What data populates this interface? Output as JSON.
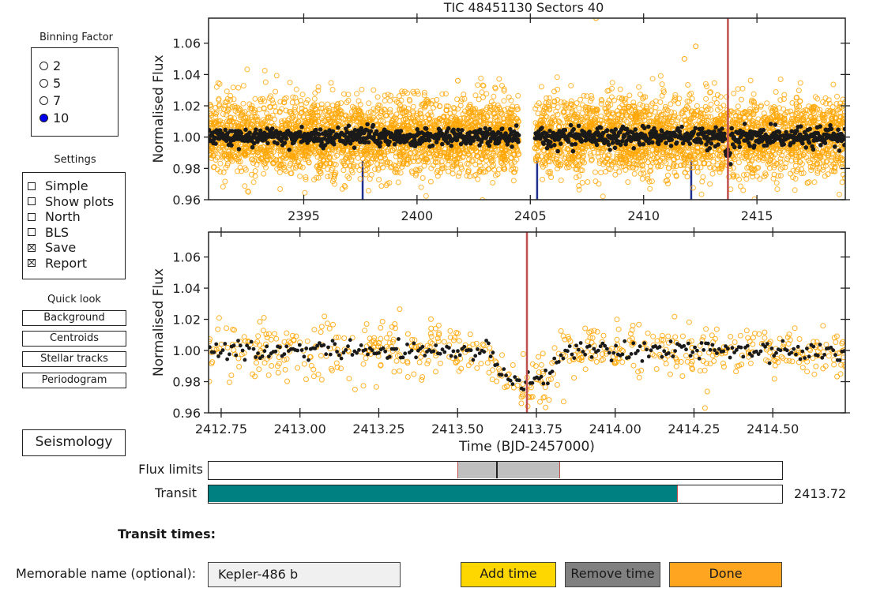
{
  "binning": {
    "title": "Binning Factor",
    "options": [
      "2",
      "5",
      "7",
      "10"
    ],
    "selected": "10"
  },
  "settings": {
    "title": "Settings",
    "items": [
      {
        "label": "Simple",
        "checked": false
      },
      {
        "label": "Show plots",
        "checked": false
      },
      {
        "label": "North",
        "checked": false
      },
      {
        "label": "BLS",
        "checked": false
      },
      {
        "label": "Save",
        "checked": true
      },
      {
        "label": "Report",
        "checked": true
      }
    ]
  },
  "quicklook": {
    "title": "Quick look",
    "buttons": [
      "Background",
      "Centroids",
      "Stellar tracks",
      "Periodogram"
    ]
  },
  "seismology_label": "Seismology",
  "chart_data": [
    {
      "type": "scatter",
      "title": "TIC 48451130     Sectors 40",
      "xlabel": "",
      "ylabel": "Normalised Flux",
      "xlim": [
        2390.8,
        2418.9
      ],
      "ylim": [
        0.96,
        1.076
      ],
      "x_ticks": [
        2395,
        2400,
        2405,
        2410,
        2415
      ],
      "y_ticks": [
        "0.96",
        "0.98",
        "1.00",
        "1.02",
        "1.04",
        "1.06"
      ],
      "series": [
        {
          "kind": "raw",
          "color": "#ffa500",
          "x_segments": [
            [
              2390.8,
              2404.5
            ],
            [
              2405.2,
              2418.9
            ]
          ],
          "center": 1.0,
          "spread": 0.012
        },
        {
          "kind": "binned",
          "color": "#1a1a1a",
          "x_segments": [
            [
              2390.8,
              2404.5
            ],
            [
              2405.2,
              2418.9
            ]
          ],
          "center": 1.0,
          "spread": 0.003
        }
      ],
      "markers": [
        {
          "x": 2397.6,
          "color": "#1f2f8f"
        },
        {
          "x": 2405.3,
          "color": "#1f2f8f"
        },
        {
          "x": 2412.1,
          "color": "#1f2f8f"
        }
      ],
      "selected_time": 2413.72,
      "selected_color": "#c0504d",
      "outliers": [
        [
          2401.8,
          1.036
        ],
        [
          2412.3,
          1.058
        ],
        [
          2411.8,
          1.05
        ],
        [
          2407.9,
          1.076
        ]
      ]
    },
    {
      "type": "scatter",
      "title": "",
      "xlabel": "Time (BJD-2457000)",
      "ylabel": "Normalised Flux",
      "xlim": [
        2412.71,
        2414.73
      ],
      "ylim": [
        0.96,
        1.076
      ],
      "x_ticks": [
        "2412.75",
        "2413.00",
        "2413.25",
        "2413.50",
        "2413.75",
        "2414.00",
        "2414.25",
        "2414.50"
      ],
      "y_ticks": [
        "0.96",
        "0.98",
        "1.00",
        "1.02",
        "1.04",
        "1.06"
      ],
      "transit": {
        "center": 2413.72,
        "depth": 0.02,
        "half_width": 0.12
      },
      "selected_time": 2413.72,
      "selected_color": "#c0504d"
    }
  ],
  "flux_limits": {
    "label": "Flux limits",
    "low": 0.435,
    "high": 0.611,
    "marker": 0.502
  },
  "transit_slider": {
    "label": "Transit",
    "fraction": 0.818,
    "value_text": "2413.72",
    "color": "#008080"
  },
  "transit_times_label": "Transit times:",
  "name_field": {
    "label": "Memorable name (optional):",
    "value": "Kepler-486 b"
  },
  "actions": {
    "add": {
      "label": "Add time",
      "color": "#ffd700"
    },
    "remove": {
      "label": "Remove time",
      "color": "#808080"
    },
    "done": {
      "label": "Done",
      "color": "#ffa520"
    }
  }
}
